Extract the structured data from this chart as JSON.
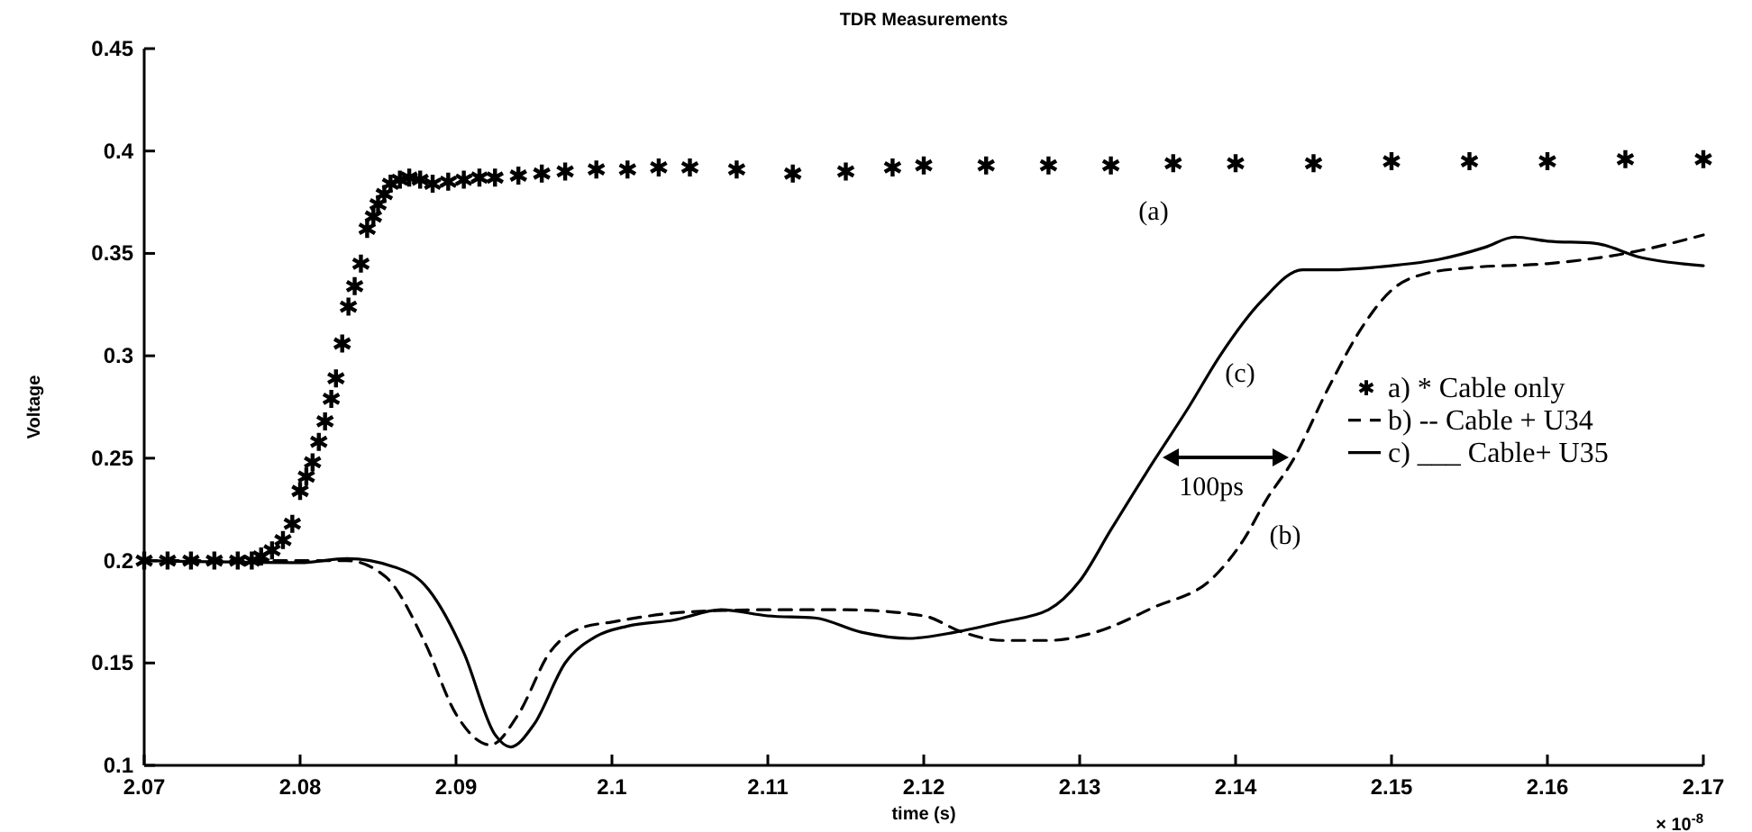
{
  "chart_data": {
    "type": "line",
    "title": "TDR Measurements",
    "xlabel": "time (s)",
    "ylabel": "Voltage",
    "xlim": [
      2.07,
      2.17
    ],
    "xticks": [
      2.07,
      2.08,
      2.09,
      2.1,
      2.11,
      2.12,
      2.13,
      2.14,
      2.15,
      2.16,
      2.17
    ],
    "ylim": [
      0.1,
      0.45
    ],
    "yticks": [
      0.1,
      0.15,
      0.2,
      0.25,
      0.3,
      0.35,
      0.4,
      0.45
    ],
    "grid": false,
    "legend": "right",
    "annotations": [
      "(a)",
      "(c)",
      "(b)",
      "100ps",
      "× 10$^{-8}$"
    ],
    "series": [
      {
        "name": "a) * Cable only",
        "color": "#000000",
        "type": "scatter",
        "marker": "cross",
        "x": [
          2.07,
          2.0715,
          2.073,
          2.0745,
          2.076,
          2.0769,
          2.0775,
          2.0782,
          2.0789,
          2.0795,
          2.08,
          2.0804,
          2.0808,
          2.0812,
          2.0816,
          2.082,
          2.0823,
          2.0827,
          2.0831,
          2.0835,
          2.0839,
          2.0843,
          2.0847,
          2.085,
          2.0854,
          2.0858,
          2.0864,
          2.087,
          2.0877,
          2.0885,
          2.0895,
          2.0905,
          2.0915,
          2.0925,
          2.094,
          2.0955,
          2.097,
          2.099,
          2.101,
          2.103,
          2.105,
          2.108,
          2.1116,
          2.115,
          2.118,
          2.12,
          2.124,
          2.128,
          2.132,
          2.136,
          2.14,
          2.145,
          2.15,
          2.155,
          2.16,
          2.165,
          2.17
        ],
        "values": [
          0.2,
          0.2,
          0.2,
          0.2,
          0.2,
          0.2,
          0.202,
          0.205,
          0.21,
          0.218,
          0.234,
          0.241,
          0.248,
          0.258,
          0.268,
          0.279,
          0.289,
          0.306,
          0.324,
          0.334,
          0.345,
          0.362,
          0.368,
          0.374,
          0.379,
          0.384,
          0.386,
          0.387,
          0.386,
          0.384,
          0.385,
          0.386,
          0.387,
          0.387,
          0.388,
          0.389,
          0.39,
          0.391,
          0.391,
          0.392,
          0.392,
          0.391,
          0.389,
          0.39,
          0.392,
          0.393,
          0.393,
          0.393,
          0.393,
          0.394,
          0.394,
          0.394,
          0.395,
          0.395,
          0.395,
          0.396,
          0.396
        ]
      },
      {
        "name": "b) -- Cable + U34",
        "color": "#000000",
        "line_style": "dashed",
        "x": [
          2.07,
          2.08,
          2.083,
          2.0855,
          2.088,
          2.09,
          2.0922,
          2.094,
          2.096,
          2.098,
          2.1,
          2.105,
          2.11,
          2.115,
          2.12,
          2.1225,
          2.125,
          2.128,
          2.131,
          2.1347,
          2.1386,
          2.1405,
          2.142,
          2.1436,
          2.146,
          2.1482,
          2.15,
          2.1521,
          2.155,
          2.16,
          2.165,
          2.17
        ],
        "values": [
          0.2,
          0.2,
          0.2,
          0.192,
          0.16,
          0.125,
          0.11,
          0.125,
          0.155,
          0.167,
          0.17,
          0.175,
          0.176,
          0.176,
          0.173,
          0.165,
          0.161,
          0.161,
          0.165,
          0.177,
          0.192,
          0.21,
          0.23,
          0.248,
          0.285,
          0.315,
          0.332,
          0.34,
          0.343,
          0.345,
          0.35,
          0.359
        ]
      },
      {
        "name": "c) ___ Cable+ U35",
        "color": "#000000",
        "line_style": "solid",
        "x": [
          2.07,
          2.08,
          2.083,
          2.086,
          2.088,
          2.0905,
          2.0925,
          2.0935,
          2.095,
          2.097,
          2.099,
          2.101,
          2.104,
          2.107,
          2.11,
          2.113,
          2.116,
          2.119,
          2.122,
          2.125,
          2.128,
          2.13,
          2.132,
          2.1347,
          2.137,
          2.139,
          2.1417,
          2.1443,
          2.146,
          2.15,
          2.153,
          2.156,
          2.1579,
          2.16,
          2.163,
          2.166,
          2.17
        ],
        "values": [
          0.2,
          0.199,
          0.201,
          0.197,
          0.188,
          0.155,
          0.115,
          0.109,
          0.12,
          0.15,
          0.163,
          0.168,
          0.171,
          0.176,
          0.173,
          0.172,
          0.165,
          0.162,
          0.165,
          0.17,
          0.176,
          0.19,
          0.215,
          0.248,
          0.275,
          0.3,
          0.327,
          0.342,
          0.342,
          0.344,
          0.347,
          0.353,
          0.358,
          0.356,
          0.355,
          0.348,
          0.344
        ]
      }
    ]
  }
}
